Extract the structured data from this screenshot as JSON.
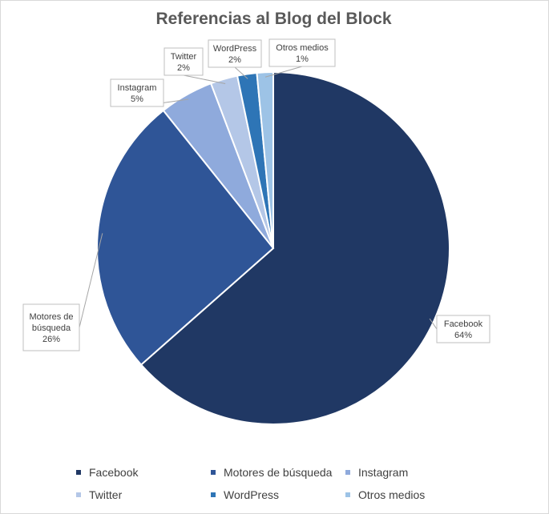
{
  "chart_data": {
    "type": "pie",
    "title": "Referencias al Blog del Block",
    "legend_position": "bottom",
    "slices": [
      {
        "name": "Facebook",
        "value": 64,
        "label_line1": "Facebook",
        "label_line2": "",
        "pct_label": "64%",
        "color": "#203864"
      },
      {
        "name": "Motores de búsqueda",
        "value": 26,
        "label_line1": "Motores de",
        "label_line2": "búsqueda",
        "pct_label": "26%",
        "color": "#2F5597"
      },
      {
        "name": "Instagram",
        "value": 5,
        "label_line1": "Instagram",
        "label_line2": "",
        "pct_label": "5%",
        "color": "#8FAADC"
      },
      {
        "name": "Twitter",
        "value": 2.5,
        "label_line1": "Twitter",
        "label_line2": "",
        "pct_label": "2%",
        "color": "#B4C7E7"
      },
      {
        "name": "WordPress",
        "value": 1.8,
        "label_line1": "WordPress",
        "label_line2": "",
        "pct_label": "2%",
        "color": "#2E75B6"
      },
      {
        "name": "Otros medios",
        "value": 1.5,
        "label_line1": "Otros medios",
        "label_line2": "",
        "pct_label": "1%",
        "color": "#9DC3E6"
      }
    ]
  }
}
